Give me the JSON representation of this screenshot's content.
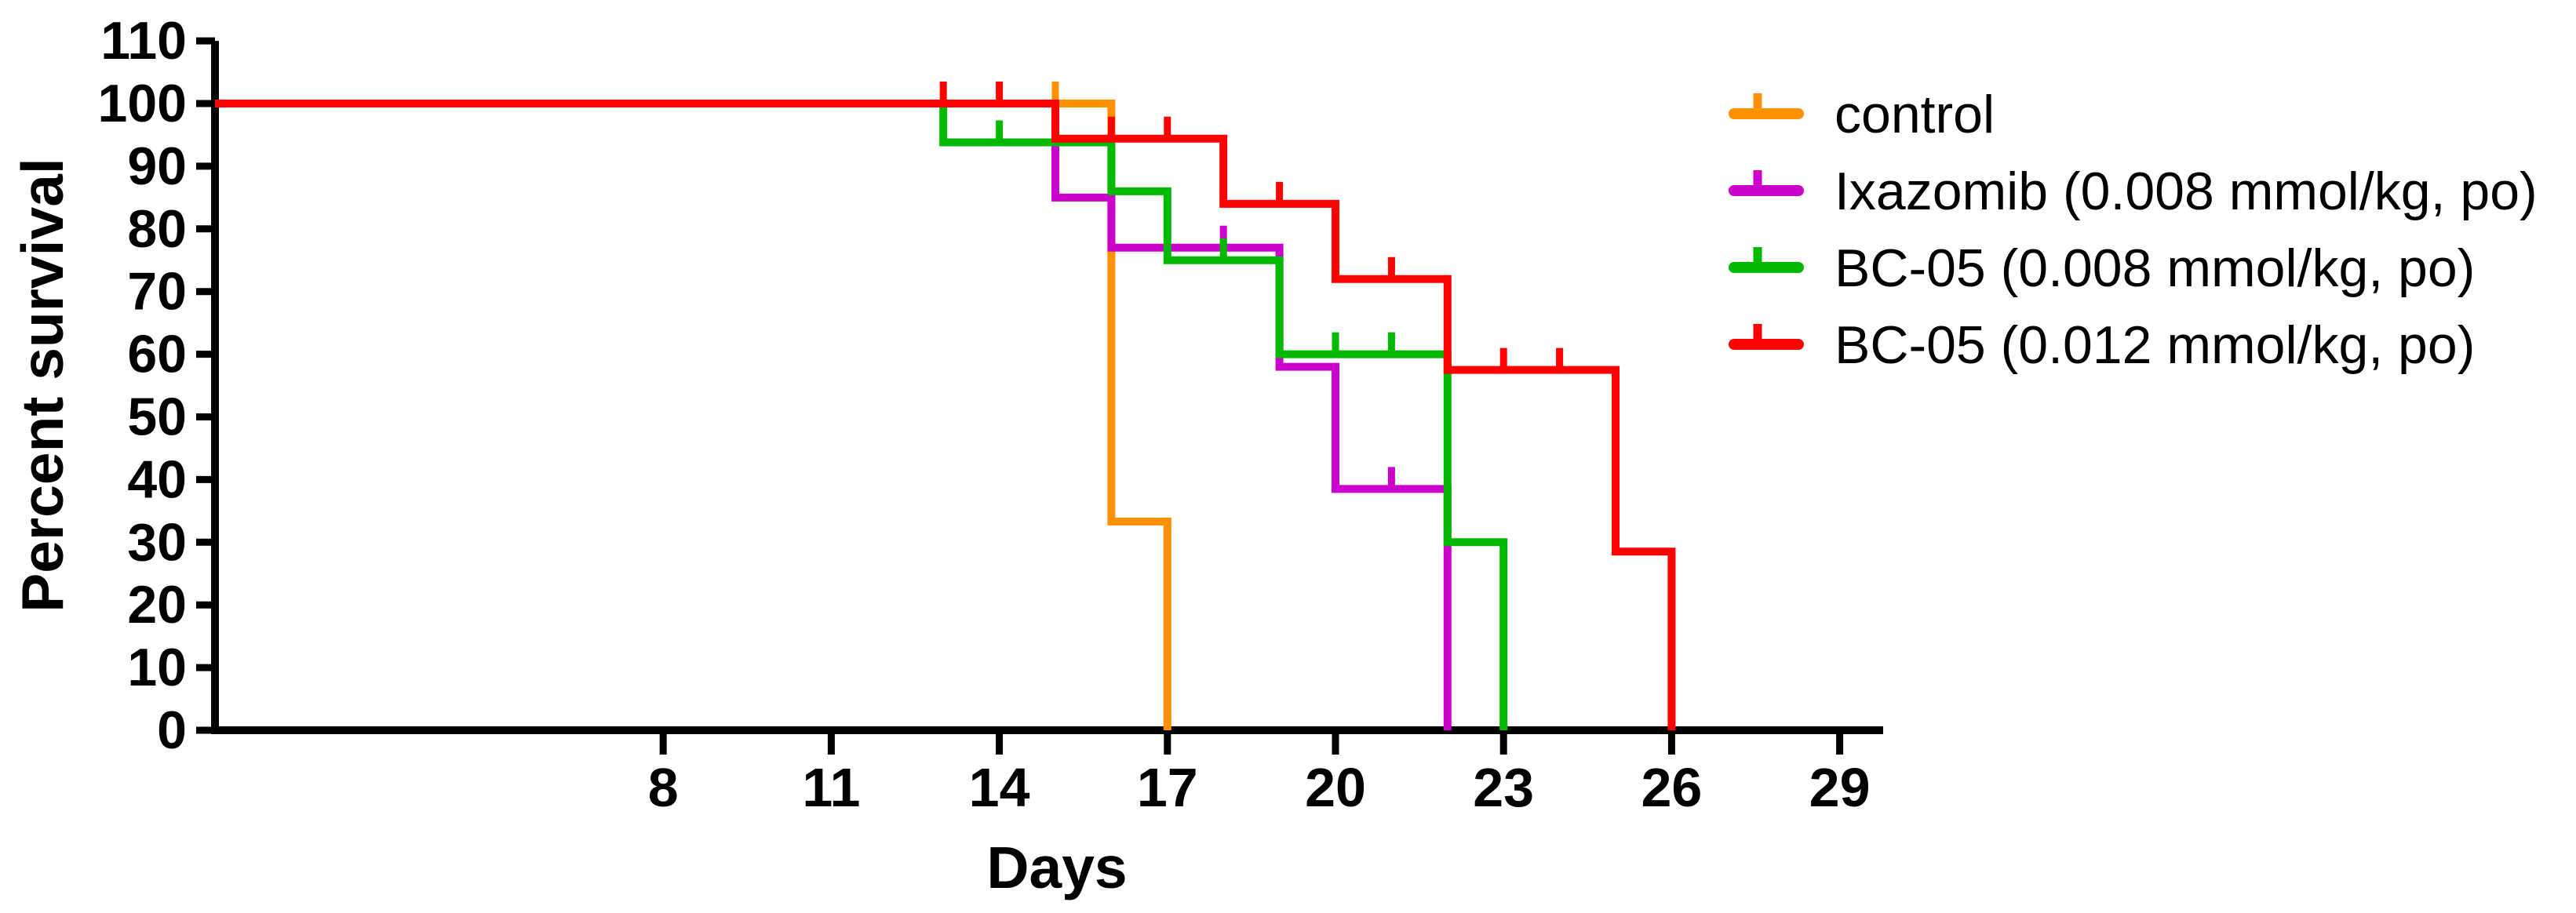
{
  "chart_data": {
    "type": "line",
    "subtype": "kaplan_meier_survival_step",
    "title": "",
    "xlabel": "Days",
    "ylabel": "Percent survival",
    "background": "#FFFFFF",
    "axis_color": "#000000",
    "grid": false,
    "legend_position": "right",
    "x_ticks": [
      8,
      11,
      14,
      17,
      20,
      23,
      26,
      29
    ],
    "y_ticks": [
      0,
      10,
      20,
      30,
      40,
      50,
      60,
      70,
      80,
      90,
      100,
      110
    ],
    "xlim": [
      0,
      29.8
    ],
    "ylim": [
      0,
      110
    ],
    "series": [
      {
        "name": "control",
        "color": "#FF9100",
        "steps": [
          [
            0,
            100
          ],
          [
            16,
            33.3
          ],
          [
            17,
            0
          ]
        ],
        "censor_ticks": [
          [
            15,
            100
          ]
        ]
      },
      {
        "name": "Ixazomib (0.008 mmol/kg, po)",
        "color": "#CC00CC",
        "steps": [
          [
            0,
            100
          ],
          [
            15,
            85
          ],
          [
            16,
            77
          ],
          [
            19,
            58
          ],
          [
            20,
            38.5
          ],
          [
            22,
            0
          ]
        ],
        "censor_ticks": [
          [
            18,
            77
          ],
          [
            21,
            38.5
          ]
        ]
      },
      {
        "name": "BC-05 (0.008 mmol/kg, po)",
        "color": "#00B900",
        "steps": [
          [
            0,
            100
          ],
          [
            13,
            93.8
          ],
          [
            16,
            86
          ],
          [
            17,
            75
          ],
          [
            19,
            60
          ],
          [
            22,
            30
          ],
          [
            23,
            0
          ]
        ],
        "censor_ticks": [
          [
            14,
            93.8
          ],
          [
            18,
            75
          ],
          [
            20,
            60
          ],
          [
            21,
            60
          ]
        ]
      },
      {
        "name": "BC-05 (0.012 mmol/kg, po)",
        "color": "#FF0000",
        "steps": [
          [
            0,
            100
          ],
          [
            15,
            94.4
          ],
          [
            18,
            84
          ],
          [
            20,
            72
          ],
          [
            22,
            57.5
          ],
          [
            25,
            28.5
          ],
          [
            26,
            0
          ]
        ],
        "censor_ticks": [
          [
            13,
            100
          ],
          [
            14,
            100
          ],
          [
            16,
            94.4
          ],
          [
            17,
            94.4
          ],
          [
            19,
            84
          ],
          [
            21,
            72
          ],
          [
            23,
            57.5
          ],
          [
            24,
            57.5
          ]
        ]
      }
    ]
  }
}
